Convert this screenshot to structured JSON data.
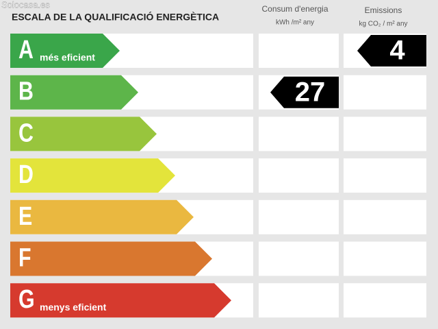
{
  "watermark": "Solocasa.es",
  "header": {
    "title": "ESCALA DE LA QUALIFICACIÓ ENERGÈTICA",
    "consumption": {
      "label": "Consum d'energia",
      "unit": "kWh /m² any"
    },
    "emissions": {
      "label": "Emissions",
      "unit": "kg CO₂ / m² any"
    }
  },
  "rows": [
    {
      "letter": "A",
      "label": "més eficient",
      "color": "#3aa64a",
      "emissions": 4
    },
    {
      "letter": "B",
      "color": "#5db54a",
      "consumption": 27
    },
    {
      "letter": "C",
      "color": "#98c53d"
    },
    {
      "letter": "D",
      "color": "#e3e43b"
    },
    {
      "letter": "E",
      "color": "#eab840"
    },
    {
      "letter": "F",
      "color": "#d9772f"
    },
    {
      "letter": "G",
      "label": "menys eficient",
      "color": "#d63a2e"
    }
  ]
}
